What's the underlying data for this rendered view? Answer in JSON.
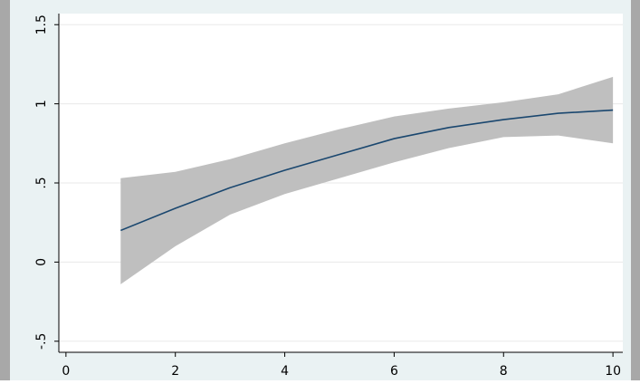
{
  "chart_data": {
    "type": "line",
    "x": [
      1,
      2,
      3,
      4,
      5,
      6,
      7,
      8,
      9,
      10
    ],
    "series": [
      {
        "color": "#1a476f",
        "values": [
          0.2,
          0.34,
          0.47,
          0.58,
          0.68,
          0.78,
          0.85,
          0.9,
          0.94,
          0.96
        ]
      }
    ],
    "band": {
      "color": "#bfbfbf",
      "lower": [
        -0.14,
        0.1,
        0.3,
        0.43,
        0.53,
        0.63,
        0.72,
        0.79,
        0.8,
        0.75
      ],
      "upper": [
        0.53,
        0.57,
        0.65,
        0.75,
        0.84,
        0.92,
        0.97,
        1.01,
        1.06,
        1.17
      ]
    },
    "xlim": [
      -0.13,
      10.18
    ],
    "xticks": [
      0,
      2,
      4,
      6,
      8,
      10
    ],
    "ylim": [
      -0.57,
      1.57
    ],
    "yticks": [
      {
        "value": -0.5,
        "label": "-.5"
      },
      0,
      {
        "value": 0.5,
        "label": ".5"
      },
      1,
      1.5
    ],
    "grid": true
  }
}
